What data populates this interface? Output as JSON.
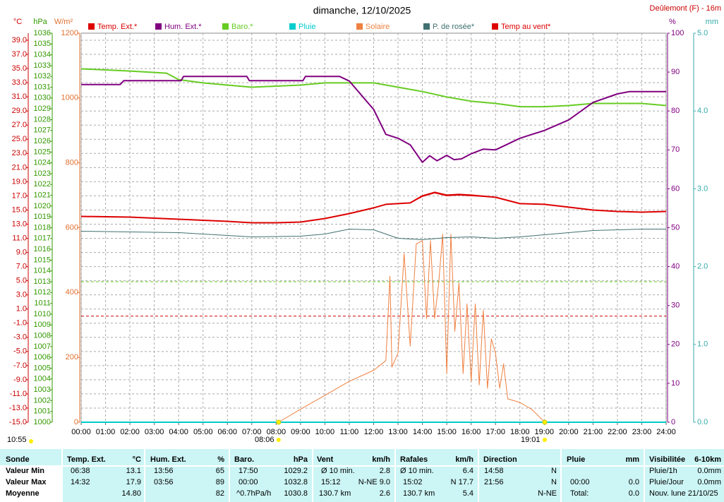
{
  "chart_data": {
    "type": "line",
    "title": "dimanche, 12/10/2025",
    "location": "Deûlemont (F) - 16m",
    "time": "10:55",
    "xlim": [
      0,
      24
    ],
    "xticks": [
      {
        "value": 0,
        "label": "00:00"
      },
      {
        "value": 1,
        "label": "01:00"
      },
      {
        "value": 2,
        "label": "02:00"
      },
      {
        "value": 3,
        "label": "03:00"
      },
      {
        "value": 4,
        "label": "04:00"
      },
      {
        "value": 5,
        "label": "05:00"
      },
      {
        "value": 6,
        "label": "06:00"
      },
      {
        "value": 7,
        "label": "07:00"
      },
      {
        "value": 8,
        "label": "08:00"
      },
      {
        "value": 9,
        "label": "09:00"
      },
      {
        "value": 10,
        "label": "10:00"
      },
      {
        "value": 11,
        "label": "11:00"
      },
      {
        "value": 12,
        "label": "12:00"
      },
      {
        "value": 13,
        "label": "13:00"
      },
      {
        "value": 14,
        "label": "14:00"
      },
      {
        "value": 15,
        "label": "15:00"
      },
      {
        "value": 16,
        "label": "16:00"
      },
      {
        "value": 17,
        "label": "17:00"
      },
      {
        "value": 18,
        "label": "18:00"
      },
      {
        "value": 19,
        "label": "19:00"
      },
      {
        "value": 20,
        "label": "20:00"
      },
      {
        "value": 21,
        "label": "21:00"
      },
      {
        "value": 22,
        "label": "22:00"
      },
      {
        "value": 23,
        "label": "23:00"
      },
      {
        "value": 24,
        "label": "24:00"
      }
    ],
    "grid": true,
    "axes": [
      {
        "label": "°C",
        "color": "#cc0000",
        "side": "left",
        "lim": [
          -15,
          40
        ],
        "ticks": [
          {
            "value": -15,
            "label": "-15.0"
          },
          {
            "value": -13,
            "label": "-13.0"
          },
          {
            "value": -11,
            "label": "-11.0"
          },
          {
            "value": -9,
            "label": "-9.0"
          },
          {
            "value": -7,
            "label": "-7.0"
          },
          {
            "value": -5,
            "label": "-5.0"
          },
          {
            "value": -3,
            "label": "-3.0"
          },
          {
            "value": -1,
            "label": "-1.0"
          },
          {
            "value": 1,
            "label": "1.0"
          },
          {
            "value": 3,
            "label": "3.0"
          },
          {
            "value": 5,
            "label": "5.0"
          },
          {
            "value": 7,
            "label": "7.0"
          },
          {
            "value": 9,
            "label": "9.0"
          },
          {
            "value": 11,
            "label": "11.0"
          },
          {
            "value": 13,
            "label": "13.0"
          },
          {
            "value": 15,
            "label": "15.0"
          },
          {
            "value": 17,
            "label": "17.0"
          },
          {
            "value": 19,
            "label": "19.0"
          },
          {
            "value": 21,
            "label": "21.0"
          },
          {
            "value": 23,
            "label": "23.0"
          },
          {
            "value": 25,
            "label": "25.0"
          },
          {
            "value": 27,
            "label": "27.0"
          },
          {
            "value": 29,
            "label": "29.0"
          },
          {
            "value": 31,
            "label": "31.0"
          },
          {
            "value": 33,
            "label": "33.0"
          },
          {
            "value": 35,
            "label": "35.0"
          },
          {
            "value": 37,
            "label": "37.0"
          },
          {
            "value": 39,
            "label": "39.0"
          }
        ]
      },
      {
        "label": "hPa",
        "color": "#339900",
        "side": "left",
        "lim": [
          1000,
          1036
        ],
        "ticks": [
          1000,
          1001,
          1002,
          1003,
          1004,
          1005,
          1006,
          1007,
          1008,
          1009,
          1010,
          1011,
          1012,
          1013,
          1014,
          1015,
          1016,
          1017,
          1018,
          1019,
          1020,
          1021,
          1022,
          1023,
          1024,
          1025,
          1026,
          1027,
          1028,
          1029,
          1030,
          1031,
          1032,
          1033,
          1034,
          1035,
          1036
        ]
      },
      {
        "label": "W/m²",
        "color": "#e07030",
        "side": "left",
        "lim": [
          0,
          1200
        ],
        "ticks": [
          0,
          200,
          400,
          600,
          800,
          1000,
          1200
        ]
      },
      {
        "label": "%",
        "color": "#800080",
        "side": "right",
        "lim": [
          0,
          100
        ],
        "ticks": [
          0,
          10,
          20,
          30,
          40,
          50,
          60,
          70,
          80,
          90,
          100
        ]
      },
      {
        "label": "mm",
        "color": "#33aaaa",
        "side": "right",
        "lim": [
          0,
          5
        ],
        "ticks": [
          {
            "value": 0,
            "label": "0.0"
          },
          {
            "value": 1,
            "label": "1.0"
          },
          {
            "value": 2,
            "label": "2.0"
          },
          {
            "value": 3,
            "label": "3.0"
          },
          {
            "value": 4,
            "label": "4.0"
          },
          {
            "value": 5,
            "label": "5.0"
          }
        ]
      }
    ],
    "ref_lines": [
      {
        "axis": 0,
        "value": 0,
        "color": "#cc0000"
      },
      {
        "axis": 1,
        "value": 1013,
        "color": "#66cc22"
      }
    ],
    "sun": [
      {
        "label": "08:06",
        "x": 8.1
      },
      {
        "label": "19:01",
        "x": 19.02
      }
    ],
    "series": [
      {
        "name": "Temp. Ext.*",
        "color": "#dd0000",
        "axis": 0,
        "width": 2,
        "x": [
          0,
          2,
          4,
          6,
          7,
          8,
          9,
          10,
          11,
          12,
          12.5,
          13,
          13.5,
          14,
          14.5,
          15,
          15.5,
          16,
          17,
          18,
          19,
          20,
          21,
          22,
          23,
          24
        ],
        "values": [
          14.1,
          14.0,
          13.7,
          13.4,
          13.2,
          13.2,
          13.3,
          13.8,
          14.5,
          15.3,
          15.8,
          15.9,
          16.0,
          17.0,
          17.5,
          17.1,
          17.2,
          17.1,
          16.8,
          15.9,
          15.8,
          15.4,
          15.0,
          14.8,
          14.7,
          14.8
        ]
      },
      {
        "name": "Hum. Ext.*",
        "color": "#800080",
        "axis": 3,
        "width": 2,
        "x": [
          0,
          1.6,
          1.75,
          4.1,
          4.2,
          6.8,
          6.9,
          9.1,
          9.2,
          10.6,
          11,
          12,
          12.5,
          13,
          13.5,
          14,
          14.3,
          14.6,
          15,
          15.3,
          15.6,
          16,
          16.5,
          17,
          18,
          19,
          20,
          21,
          22,
          22.5,
          24
        ],
        "values": [
          86.8,
          86.8,
          87.8,
          87.8,
          88.9,
          88.9,
          87.8,
          87.8,
          88.9,
          88.9,
          87.7,
          80.4,
          74,
          73,
          71.3,
          66.8,
          68.5,
          67.2,
          68.6,
          67.5,
          67.7,
          69,
          70.2,
          70,
          73,
          75,
          77.7,
          82.2,
          84.4,
          85,
          85
        ]
      },
      {
        "name": "Baro.*",
        "color": "#66cc22",
        "axis": 1,
        "width": 2,
        "x": [
          0,
          2,
          3.5,
          4,
          5,
          6,
          7,
          8,
          9,
          10,
          11,
          12,
          13,
          14,
          15,
          16,
          17,
          18,
          19,
          20,
          21,
          22,
          23,
          24
        ],
        "values": [
          1032.7,
          1032.5,
          1032.3,
          1031.7,
          1031.4,
          1031.2,
          1031.0,
          1031.1,
          1031.2,
          1031.4,
          1031.4,
          1031.4,
          1031.0,
          1030.6,
          1030.1,
          1029.7,
          1029.5,
          1029.2,
          1029.2,
          1029.3,
          1029.5,
          1029.5,
          1029.5,
          1029.3
        ]
      },
      {
        "name": "Pluie",
        "color": "#00cccc",
        "axis": 4,
        "width": 2,
        "x": [
          0,
          24
        ],
        "values": [
          0,
          0
        ]
      },
      {
        "name": "Solaire",
        "color": "#f08040",
        "axis": 2,
        "width": 1,
        "x": [
          8.1,
          9,
          10,
          11,
          12,
          12.5,
          12.67,
          12.75,
          13,
          13.25,
          13.5,
          13.75,
          14,
          14.17,
          14.33,
          14.5,
          14.67,
          14.83,
          15,
          15.17,
          15.33,
          15.5,
          15.67,
          15.83,
          16,
          16.17,
          16.33,
          16.5,
          16.67,
          16.83,
          17,
          17.17,
          17.33,
          17.5,
          18,
          18.5,
          19.02
        ],
        "values": [
          0,
          40,
          83,
          126,
          160,
          190,
          450,
          170,
          213,
          520,
          235,
          550,
          560,
          320,
          560,
          320,
          430,
          580,
          150,
          580,
          280,
          430,
          150,
          365,
          126,
          365,
          115,
          345,
          105,
          257,
          213,
          105,
          180,
          72,
          61,
          39,
          0
        ]
      },
      {
        "name": "P. de rosée*",
        "color": "#407070",
        "axis": 0,
        "width": 1,
        "x": [
          0,
          4,
          7,
          9,
          10,
          11,
          12,
          13,
          14,
          15,
          16,
          17,
          18,
          19,
          20,
          21,
          22,
          23,
          24
        ],
        "values": [
          12.0,
          11.8,
          11.2,
          11.3,
          11.6,
          12.3,
          12.2,
          11.0,
          10.8,
          11.1,
          11.2,
          11.0,
          11.2,
          11.5,
          11.8,
          12.1,
          12.2,
          12.3,
          12.3
        ]
      },
      {
        "name": "Temp au vent*",
        "color": "#dd0000",
        "axis": 0,
        "width": 1,
        "x": [
          0,
          2,
          4,
          6,
          7,
          8,
          9,
          10,
          11,
          12,
          12.5,
          13,
          13.5,
          14,
          14.5,
          15,
          15.5,
          16,
          17,
          18,
          19,
          20,
          21,
          22,
          23,
          24
        ],
        "values": [
          14.1,
          14.0,
          13.7,
          13.4,
          13.2,
          13.2,
          13.3,
          13.8,
          14.5,
          15.3,
          15.8,
          15.9,
          16.0,
          16.9,
          17.4,
          17.0,
          17.1,
          17.0,
          16.8,
          15.9,
          15.8,
          15.4,
          15.0,
          14.8,
          14.7,
          14.8
        ]
      }
    ]
  },
  "table": {
    "header": [
      "Sonde",
      "Temp. Ext.",
      "°C",
      "Hum. Ext.",
      "%",
      "Baro.",
      "hPa",
      "Vent",
      "km/h",
      "Rafales",
      "km/h",
      "Direction",
      "Pluie",
      "mm",
      "Visibilitée",
      "6-10km"
    ],
    "rows": [
      [
        "Valeur Min",
        "06:38",
        "13.1",
        "13:56",
        "65",
        "17:50",
        "1029.2",
        "Ø 10 min.",
        "2.8",
        "Ø 10 min.",
        "6.4",
        "14:58",
        "N",
        "Pluie/1h",
        "0.0mm"
      ],
      [
        "Valeur Max",
        "14:32",
        "17.9",
        "03:56",
        "89",
        "00:00",
        "1032.8",
        "15:12",
        "N-NE 9.0",
        "15:02",
        "N 17.7",
        "21:56",
        "N",
        "00:00",
        "0.0",
        "Pluie/Jour",
        "0.0mm"
      ],
      [
        "Moyenne",
        "14.80",
        "82",
        "^0.7hPa/h",
        "1030.8",
        "130.7 km",
        "2.6",
        "130.7 km",
        "5.4",
        "N-NE",
        "Total:",
        "0.0",
        "Nouv. lune 21/10/25"
      ]
    ]
  }
}
